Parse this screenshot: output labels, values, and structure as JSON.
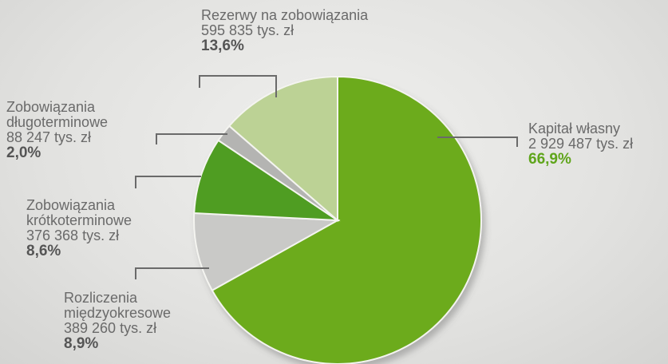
{
  "chart_data": {
    "type": "pie",
    "categories": [
      "Kapitał własny",
      "Rozliczenia\nmiędzyokresowe",
      "Zobowiązania\nkrótkoterminowe",
      "Zobowiązania\ndługoterminowe",
      "Rezerwy na zobowiązania"
    ],
    "amount_labels": [
      "2 929 487 tys. zł",
      "389 260 tys. zł",
      "376 368 tys. zł",
      "88 247 tys. zł",
      "595 835 tys. zł"
    ],
    "values": [
      66.9,
      8.9,
      8.6,
      2.0,
      13.6
    ],
    "value_labels": [
      "66,9%",
      "8,9%",
      "8,6%",
      "2,0%",
      "13,6%"
    ],
    "colors": [
      "#6cab1f",
      "#c9c9c7",
      "#4f9d22",
      "#b4b4b2",
      "#bcd295"
    ]
  }
}
